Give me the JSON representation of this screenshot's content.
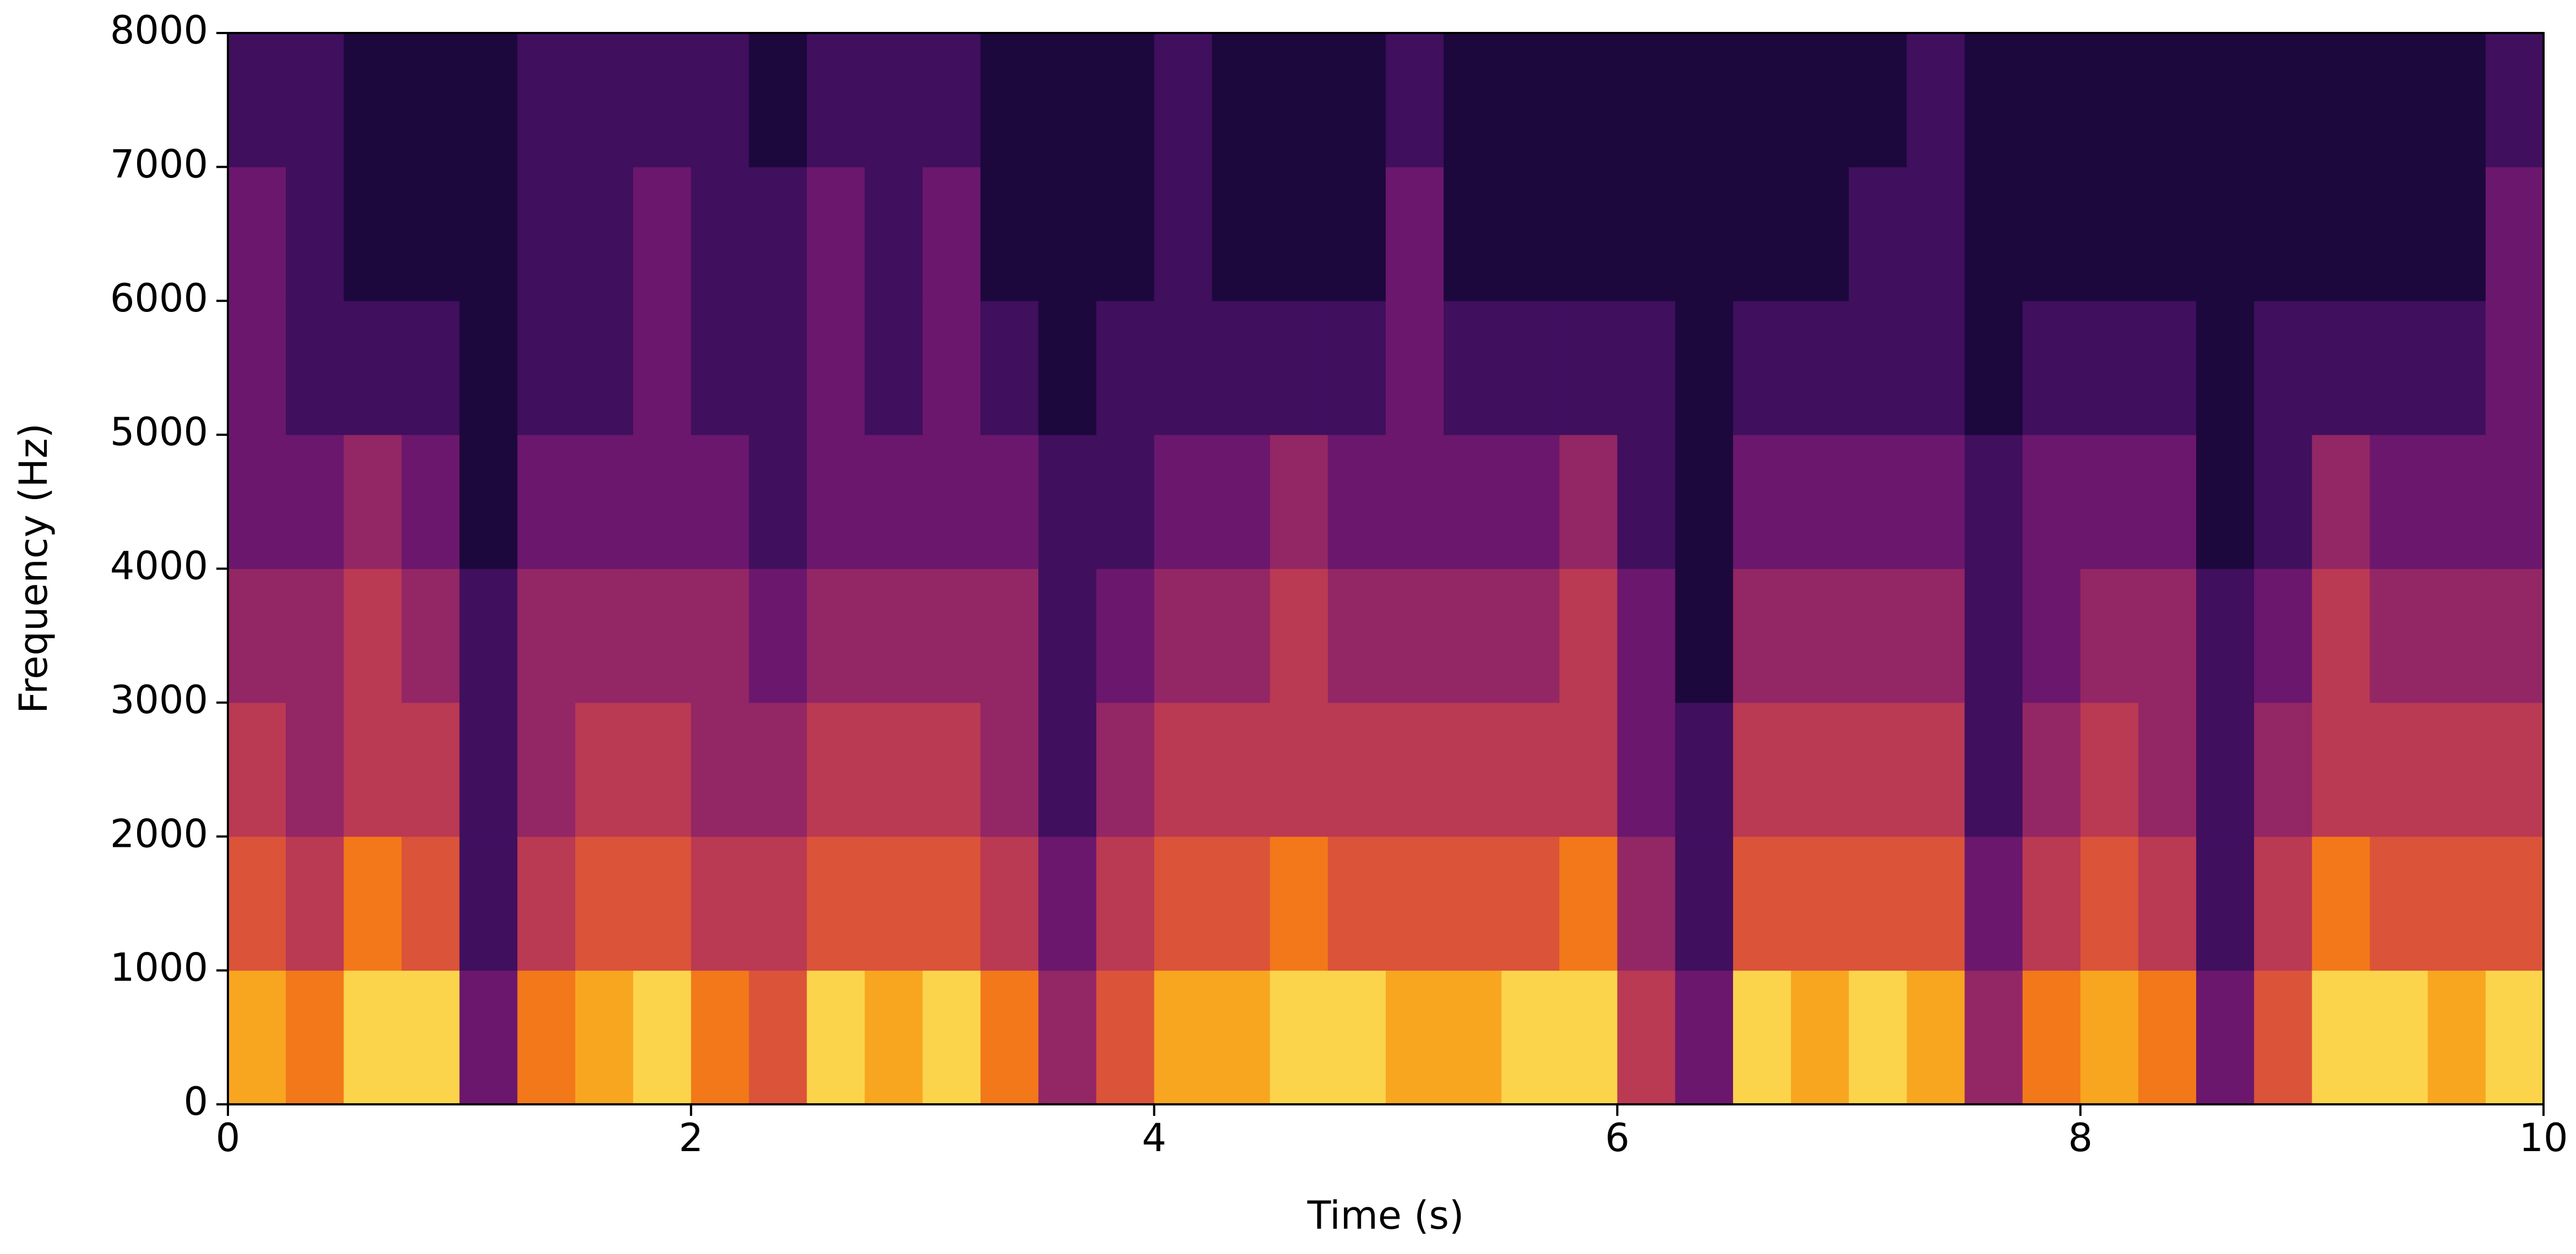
{
  "chart_data": {
    "type": "spectrogram",
    "colormap": "inferno",
    "xlabel": "Time (s)",
    "ylabel": "Frequency (Hz)",
    "xlim": [
      0,
      10
    ],
    "ylim": [
      0,
      8000
    ],
    "xticks": [
      0,
      2,
      4,
      6,
      8,
      10
    ],
    "yticks": [
      0,
      1000,
      2000,
      3000,
      4000,
      5000,
      6000,
      7000,
      8000
    ],
    "xbins": [
      0,
      0.25,
      0.5,
      0.75,
      1,
      1.25,
      1.5,
      1.75,
      2,
      2.25,
      2.5,
      2.75,
      3,
      3.25,
      3.5,
      3.75,
      4,
      4.25,
      4.5,
      4.75,
      5,
      5.25,
      5.5,
      5.75,
      6,
      6.25,
      6.5,
      6.75,
      7,
      7.25,
      7.5,
      7.75,
      8,
      8.25,
      8.5,
      8.75,
      9,
      9.25,
      9.5,
      9.75,
      10
    ],
    "ybins": [
      0,
      1000,
      2000,
      3000,
      4000,
      5000,
      6000,
      7000,
      8000
    ],
    "values": [
      [
        0.8,
        0.7,
        0.9,
        0.9,
        0.3,
        0.7,
        0.8,
        0.9,
        0.7,
        0.6,
        0.9,
        0.8,
        0.9,
        0.7,
        0.4,
        0.6,
        0.8,
        0.8,
        0.9,
        0.9,
        0.8,
        0.8,
        0.9,
        0.9,
        0.5,
        0.3,
        0.9,
        0.8,
        0.9,
        0.8,
        0.4,
        0.7,
        0.8,
        0.7,
        0.3,
        0.6,
        0.9,
        0.9,
        0.8,
        0.9
      ],
      [
        0.6,
        0.5,
        0.7,
        0.6,
        0.2,
        0.5,
        0.6,
        0.6,
        0.5,
        0.5,
        0.6,
        0.6,
        0.6,
        0.5,
        0.3,
        0.5,
        0.6,
        0.6,
        0.7,
        0.6,
        0.6,
        0.6,
        0.6,
        0.7,
        0.4,
        0.2,
        0.6,
        0.6,
        0.6,
        0.6,
        0.3,
        0.5,
        0.6,
        0.5,
        0.2,
        0.5,
        0.7,
        0.6,
        0.6,
        0.6
      ],
      [
        0.5,
        0.4,
        0.5,
        0.5,
        0.2,
        0.4,
        0.5,
        0.5,
        0.4,
        0.4,
        0.5,
        0.5,
        0.5,
        0.4,
        0.2,
        0.4,
        0.5,
        0.5,
        0.5,
        0.5,
        0.5,
        0.5,
        0.5,
        0.5,
        0.3,
        0.2,
        0.5,
        0.5,
        0.5,
        0.5,
        0.2,
        0.4,
        0.5,
        0.4,
        0.2,
        0.4,
        0.5,
        0.5,
        0.5,
        0.5
      ],
      [
        0.4,
        0.4,
        0.5,
        0.4,
        0.2,
        0.4,
        0.4,
        0.4,
        0.4,
        0.3,
        0.4,
        0.4,
        0.4,
        0.4,
        0.2,
        0.3,
        0.4,
        0.4,
        0.5,
        0.4,
        0.4,
        0.4,
        0.4,
        0.5,
        0.3,
        0.1,
        0.4,
        0.4,
        0.4,
        0.4,
        0.2,
        0.3,
        0.4,
        0.4,
        0.2,
        0.3,
        0.5,
        0.4,
        0.4,
        0.4
      ],
      [
        0.3,
        0.3,
        0.4,
        0.3,
        0.1,
        0.3,
        0.3,
        0.3,
        0.3,
        0.2,
        0.3,
        0.3,
        0.3,
        0.3,
        0.2,
        0.2,
        0.3,
        0.3,
        0.4,
        0.3,
        0.3,
        0.3,
        0.3,
        0.4,
        0.2,
        0.1,
        0.3,
        0.3,
        0.3,
        0.3,
        0.2,
        0.3,
        0.3,
        0.3,
        0.1,
        0.2,
        0.4,
        0.3,
        0.3,
        0.3
      ],
      [
        0.3,
        0.2,
        0.2,
        0.2,
        0.1,
        0.2,
        0.2,
        0.3,
        0.2,
        0.2,
        0.3,
        0.2,
        0.3,
        0.2,
        0.1,
        0.2,
        0.2,
        0.2,
        0.2,
        0.2,
        0.3,
        0.2,
        0.2,
        0.2,
        0.2,
        0.1,
        0.2,
        0.2,
        0.2,
        0.2,
        0.1,
        0.2,
        0.2,
        0.2,
        0.1,
        0.2,
        0.2,
        0.2,
        0.2,
        0.3
      ],
      [
        0.3,
        0.2,
        0.1,
        0.1,
        0.1,
        0.2,
        0.2,
        0.3,
        0.2,
        0.2,
        0.3,
        0.2,
        0.3,
        0.1,
        0.1,
        0.1,
        0.2,
        0.1,
        0.1,
        0.1,
        0.3,
        0.1,
        0.1,
        0.1,
        0.1,
        0.1,
        0.1,
        0.1,
        0.2,
        0.2,
        0.1,
        0.1,
        0.1,
        0.1,
        0.1,
        0.1,
        0.1,
        0.1,
        0.1,
        0.3
      ],
      [
        0.2,
        0.2,
        0.1,
        0.1,
        0.1,
        0.2,
        0.2,
        0.2,
        0.2,
        0.1,
        0.2,
        0.2,
        0.2,
        0.1,
        0.1,
        0.1,
        0.2,
        0.1,
        0.1,
        0.1,
        0.2,
        0.1,
        0.1,
        0.1,
        0.1,
        0.1,
        0.1,
        0.1,
        0.1,
        0.2,
        0.1,
        0.1,
        0.1,
        0.1,
        0.1,
        0.1,
        0.1,
        0.1,
        0.1,
        0.2
      ]
    ]
  }
}
